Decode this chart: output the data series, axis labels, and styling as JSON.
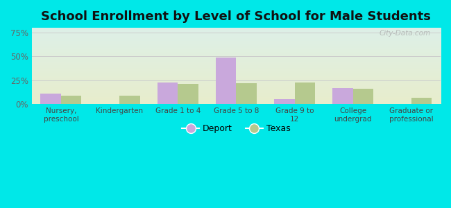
{
  "title": "School Enrollment by Level of School for Male Students",
  "categories": [
    "Nursery,\npreschool",
    "Kindergarten",
    "Grade 1 to 4",
    "Grade 5 to 8",
    "Grade 9 to\n12",
    "College\nundergrad",
    "Graduate or\nprofessional"
  ],
  "deport_values": [
    11,
    0,
    23,
    49,
    5,
    17,
    0
  ],
  "texas_values": [
    9,
    9,
    21,
    22,
    23,
    16,
    7
  ],
  "deport_color": "#c9a8dc",
  "texas_color": "#b5c98e",
  "bar_width": 0.35,
  "ylim": [
    0,
    80
  ],
  "yticks": [
    0,
    25,
    50,
    75
  ],
  "ytick_labels": [
    "0%",
    "25%",
    "50%",
    "75%"
  ],
  "background_color": "#00e8e8",
  "plot_bg_top_left": "#d4ede0",
  "plot_bg_top_right": "#c8dff0",
  "plot_bg_bottom": "#e4edce",
  "grid_color": "#cccccc",
  "title_fontsize": 13,
  "legend_labels": [
    "Deport",
    "Texas"
  ],
  "watermark": "City-Data.com"
}
